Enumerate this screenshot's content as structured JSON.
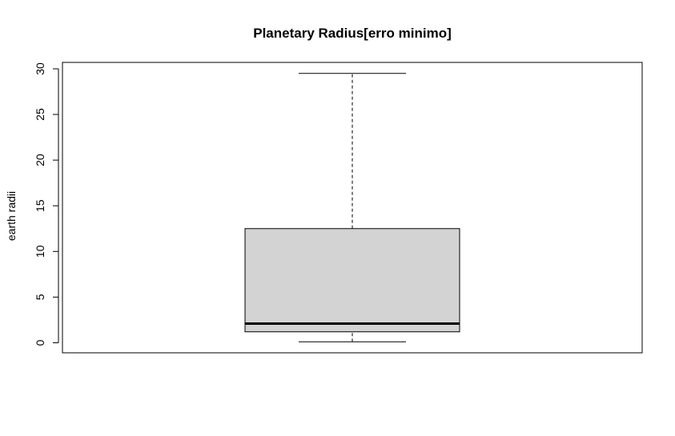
{
  "chart_data": {
    "type": "boxplot",
    "title": "Planetary Radius[erro minimo]",
    "xlabel": "",
    "ylabel": "earth radii",
    "ylim": [
      -1.1,
      30.7
    ],
    "yticks": [
      "0",
      "5",
      "10",
      "15",
      "20",
      "25",
      "30"
    ],
    "ytick_values": [
      0,
      5,
      10,
      15,
      20,
      25,
      30
    ],
    "series": [
      {
        "name": "Planetary Radius",
        "whisker_low": 0.1,
        "q1": 1.2,
        "median": 2.1,
        "q3": 12.5,
        "whisker_high": 29.5
      }
    ],
    "colors": {
      "box_fill": "#d3d3d3",
      "stroke": "#000000"
    }
  }
}
